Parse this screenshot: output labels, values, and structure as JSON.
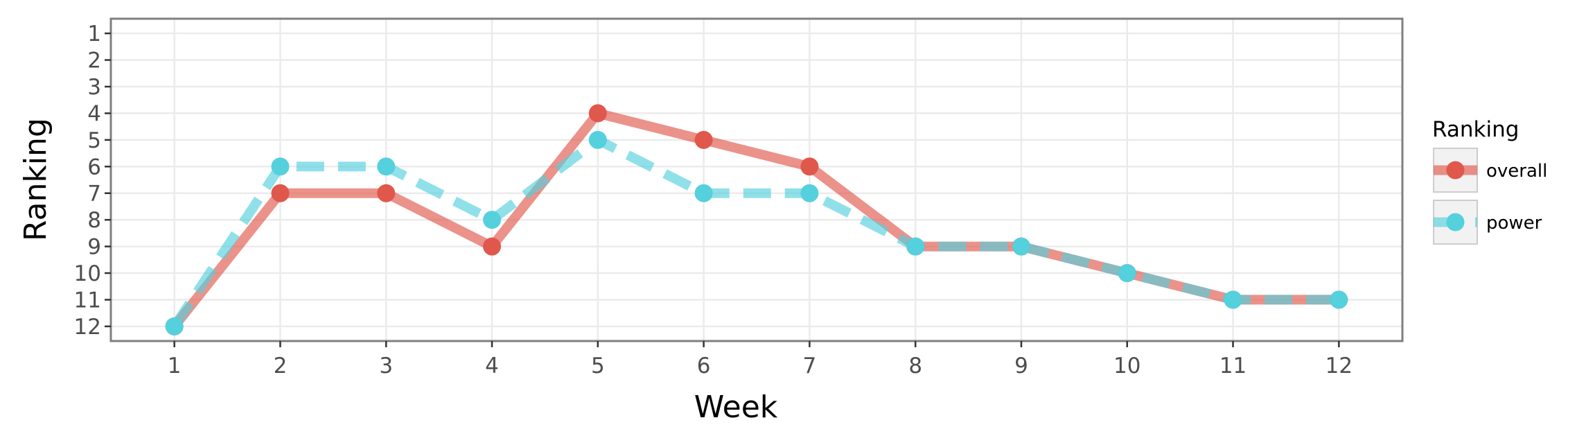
{
  "chart_data": {
    "type": "line",
    "xlabel": "Week",
    "ylabel": "Ranking",
    "x": [
      1,
      2,
      3,
      4,
      5,
      6,
      7,
      8,
      9,
      10,
      11,
      12
    ],
    "xlim": [
      0.4,
      12.6
    ],
    "ylim": [
      12.55,
      0.45
    ],
    "y_reversed": true,
    "xticks": [
      "1",
      "2",
      "3",
      "4",
      "5",
      "6",
      "7",
      "8",
      "9",
      "10",
      "11",
      "12"
    ],
    "yticks": [
      "1",
      "2",
      "3",
      "4",
      "5",
      "6",
      "7",
      "8",
      "9",
      "10",
      "11",
      "12"
    ],
    "grid": true,
    "legend": {
      "title": "Ranking",
      "placement": "right"
    },
    "series": [
      {
        "name": "overall",
        "values": [
          12,
          7,
          7,
          9,
          4,
          5,
          6,
          9,
          9,
          10,
          11,
          11
        ],
        "color": "#e0574b",
        "line_style": "solid"
      },
      {
        "name": "power",
        "values": [
          12,
          6,
          6,
          8,
          5,
          7,
          7,
          9,
          9,
          10,
          11,
          11
        ],
        "color": "#55d0dd",
        "line_style": "dashed"
      }
    ]
  }
}
